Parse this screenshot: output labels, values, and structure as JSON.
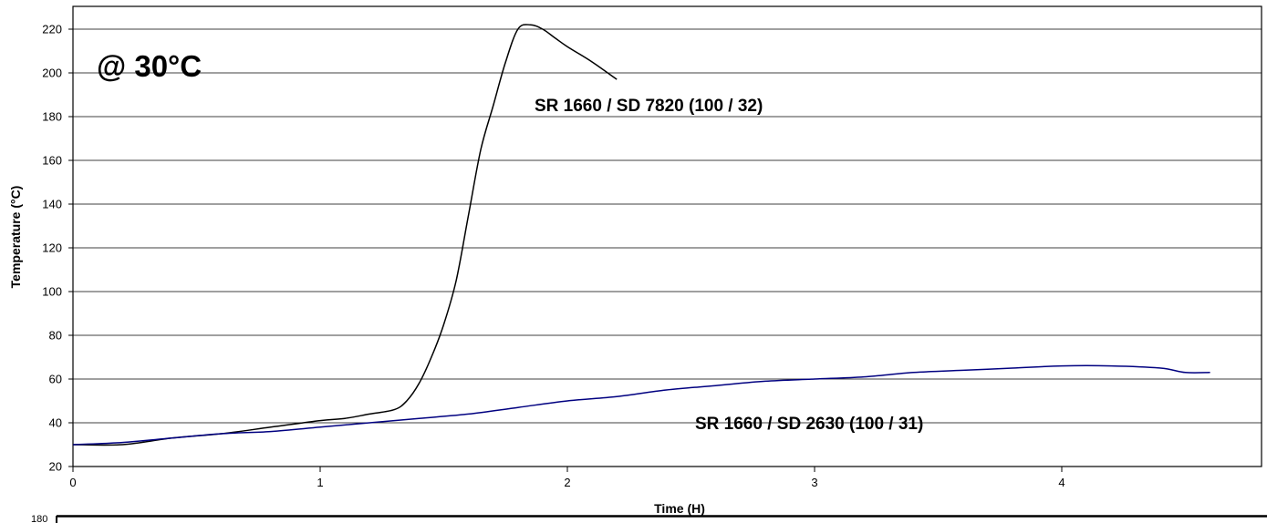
{
  "chart_data": {
    "type": "line",
    "title": "",
    "xlabel": "Time (H)",
    "ylabel": "Temperature  (°C)",
    "xlim": [
      0,
      4.8
    ],
    "ylim": [
      20,
      230
    ],
    "x_ticks": [
      0,
      1,
      2,
      3,
      4
    ],
    "y_ticks": [
      20,
      40,
      60,
      80,
      100,
      120,
      140,
      160,
      180,
      200,
      220
    ],
    "grid": "horizontal",
    "annotations": {
      "condition": "@ 30°C",
      "series_a_label": "SR 1660 / SD 7820 (100 / 32)",
      "series_b_label": "SR 1660 / SD 2630 (100 / 31)"
    },
    "series": [
      {
        "color": "#000000",
        "x": [
          0,
          0.2,
          0.4,
          0.6,
          0.8,
          1.0,
          1.1,
          1.2,
          1.3,
          1.35,
          1.4,
          1.45,
          1.5,
          1.55,
          1.6,
          1.65,
          1.7,
          1.75,
          1.8,
          1.85,
          1.9,
          1.95,
          2.0,
          2.1,
          2.2
        ],
        "y": [
          30,
          30,
          33,
          35,
          38,
          41,
          42,
          44,
          46,
          50,
          58,
          70,
          85,
          105,
          135,
          165,
          185,
          205,
          220,
          222,
          220,
          216,
          212,
          205,
          197
        ]
      },
      {
        "color": "#000080",
        "x": [
          0,
          0.2,
          0.4,
          0.6,
          0.8,
          1.0,
          1.2,
          1.4,
          1.6,
          1.8,
          2.0,
          2.2,
          2.4,
          2.6,
          2.8,
          3.0,
          3.2,
          3.4,
          3.6,
          3.8,
          4.0,
          4.2,
          4.4,
          4.5,
          4.6
        ],
        "y": [
          30,
          31,
          33,
          35,
          36,
          38,
          40,
          42,
          44,
          47,
          50,
          52,
          55,
          57,
          59,
          60,
          61,
          63,
          64,
          65,
          66,
          66,
          65,
          63,
          63
        ]
      }
    ]
  },
  "cropped_fragment": {
    "tick_label": "180"
  }
}
